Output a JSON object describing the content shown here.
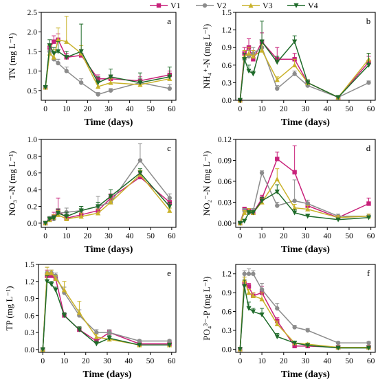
{
  "legend": [
    {
      "name": "V1",
      "color": "#c8217a",
      "marker": "square"
    },
    {
      "name": "V2",
      "color": "#8c8c8c",
      "marker": "circle"
    },
    {
      "name": "V3",
      "color": "#c9b22a",
      "marker": "triangle"
    },
    {
      "name": "V4",
      "color": "#1f6b2a",
      "marker": "triangle-down"
    }
  ],
  "chart_data": [
    {
      "type": "line",
      "panel": "a",
      "ylabel": "TN (mg L⁻¹)",
      "xlabel": "Time (days)",
      "xlim": [
        -2,
        62
      ],
      "ylim": [
        0.25,
        2.5
      ],
      "xticks": [
        0,
        10,
        20,
        30,
        40,
        50,
        60
      ],
      "yticks": [
        0.5,
        1.0,
        1.5,
        2.0,
        2.5
      ],
      "yticklabels": [
        "0.5",
        "1.0",
        "1.5",
        "2.0",
        "2.5"
      ],
      "x": [
        0,
        2,
        4,
        6,
        10,
        17,
        25,
        31,
        45,
        59
      ],
      "series": [
        {
          "name": "V1",
          "values": [
            0.58,
            1.6,
            1.75,
            1.8,
            1.35,
            1.4,
            0.8,
            0.8,
            0.75,
            0.9
          ],
          "errors": [
            0,
            0.1,
            0.15,
            0.15,
            0.1,
            0.15,
            0.1,
            0.1,
            0.1,
            0.1
          ]
        },
        {
          "name": "V2",
          "values": [
            0.58,
            1.5,
            1.3,
            1.2,
            1.0,
            0.7,
            0.4,
            0.5,
            0.7,
            0.55
          ],
          "errors": [
            0,
            0.1,
            0.15,
            0.1,
            0.1,
            0.1,
            0.05,
            0.05,
            0.1,
            0.1
          ]
        },
        {
          "name": "V3",
          "values": [
            0.58,
            1.45,
            1.35,
            1.8,
            1.75,
            1.45,
            0.6,
            0.7,
            0.65,
            0.8
          ],
          "errors": [
            0,
            0.2,
            0.2,
            0.3,
            0.65,
            0.2,
            0.1,
            0.1,
            0.1,
            0.1
          ]
        },
        {
          "name": "V4",
          "values": [
            0.58,
            1.65,
            1.45,
            1.5,
            1.35,
            1.5,
            0.7,
            0.85,
            0.7,
            0.85
          ],
          "errors": [
            0,
            0.15,
            0.15,
            0.25,
            0.15,
            0.7,
            0.15,
            0.2,
            0.25,
            0.25
          ]
        }
      ]
    },
    {
      "type": "line",
      "panel": "b",
      "ylabel": "NH₄⁺-N (mg L⁻¹)",
      "xlabel": "Time (days)",
      "xlim": [
        -2,
        62
      ],
      "ylim": [
        0,
        1.5
      ],
      "xticks": [
        0,
        10,
        20,
        30,
        40,
        50,
        60
      ],
      "yticks": [
        0.0,
        0.3,
        0.6,
        0.9,
        1.2,
        1.5
      ],
      "yticklabels": [
        "0.0",
        "0.3",
        "0.6",
        "0.9",
        "1.2",
        "1.5"
      ],
      "x": [
        0,
        2,
        4,
        6,
        10,
        17,
        25,
        31,
        45,
        59
      ],
      "series": [
        {
          "name": "V1",
          "values": [
            0.0,
            0.8,
            0.9,
            0.7,
            1.0,
            0.7,
            0.7,
            0.3,
            0.05,
            0.65
          ],
          "errors": [
            0,
            0.1,
            0.15,
            0.15,
            0.15,
            0.2,
            0.1,
            0.05,
            0.02,
            0.1
          ]
        },
        {
          "name": "V2",
          "values": [
            0.0,
            0.7,
            0.75,
            0.8,
            0.9,
            0.2,
            0.45,
            0.25,
            0.05,
            0.3
          ],
          "errors": [
            0,
            0.1,
            0.1,
            0.1,
            0.1,
            0.05,
            0.05,
            0.05,
            0.02,
            0.03
          ]
        },
        {
          "name": "V3",
          "values": [
            0.0,
            0.75,
            0.8,
            0.75,
            0.85,
            0.35,
            0.6,
            0.3,
            0.05,
            0.7
          ],
          "errors": [
            0,
            0.1,
            0.1,
            0.1,
            0.1,
            0.05,
            0.1,
            0.05,
            0.02,
            0.1
          ]
        },
        {
          "name": "V4",
          "values": [
            0.0,
            0.7,
            0.5,
            0.45,
            1.0,
            0.65,
            1.0,
            0.3,
            0.05,
            0.6
          ],
          "errors": [
            0,
            0.1,
            0.1,
            0.05,
            0.35,
            0.1,
            0.1,
            0.05,
            0.02,
            0.2
          ]
        }
      ]
    },
    {
      "type": "line",
      "panel": "c",
      "ylabel": "NO₃⁻-N (mg L⁻¹)",
      "xlabel": "Time (days)",
      "xlim": [
        -2,
        62
      ],
      "ylim": [
        -0.05,
        1.0
      ],
      "xticks": [
        0,
        10,
        20,
        30,
        40,
        50,
        60
      ],
      "yticks": [
        0.0,
        0.2,
        0.4,
        0.6,
        0.8,
        1.0
      ],
      "yticklabels": [
        "0.0",
        "0.2",
        "0.4",
        "0.6",
        "0.8",
        "1.0"
      ],
      "x": [
        0,
        2,
        4,
        6,
        10,
        17,
        25,
        31,
        45,
        59
      ],
      "series": [
        {
          "name": "V1",
          "values": [
            0.0,
            0.05,
            0.08,
            0.15,
            0.06,
            0.1,
            0.15,
            0.3,
            0.55,
            0.25
          ],
          "errors": [
            0,
            0.02,
            0.05,
            0.15,
            0.03,
            0.05,
            0.05,
            0.05,
            0.05,
            0.05
          ]
        },
        {
          "name": "V2",
          "values": [
            0.0,
            0.06,
            0.05,
            0.12,
            0.13,
            0.15,
            0.2,
            0.25,
            0.75,
            0.3
          ],
          "errors": [
            0,
            0.02,
            0.03,
            0.05,
            0.05,
            0.05,
            0.12,
            0.05,
            0.2,
            0.05
          ]
        },
        {
          "name": "V3",
          "values": [
            0.0,
            0.04,
            0.07,
            0.1,
            0.05,
            0.08,
            0.12,
            0.25,
            0.58,
            0.15
          ],
          "errors": [
            0,
            0.02,
            0.03,
            0.05,
            0.03,
            0.04,
            0.05,
            0.05,
            0.05,
            0.03
          ]
        },
        {
          "name": "V4",
          "values": [
            0.0,
            0.05,
            0.06,
            0.12,
            0.08,
            0.15,
            0.2,
            0.32,
            0.6,
            0.2
          ],
          "errors": [
            0,
            0.02,
            0.03,
            0.05,
            0.05,
            0.05,
            0.05,
            0.08,
            0.05,
            0.05
          ]
        }
      ]
    },
    {
      "type": "line",
      "panel": "d",
      "ylabel": "NO₂⁻-N (mg L⁻¹)",
      "xlabel": "Time (days)",
      "xlim": [
        -2,
        62
      ],
      "ylim": [
        -0.006,
        0.12
      ],
      "xticks": [
        0,
        10,
        20,
        30,
        40,
        50,
        60
      ],
      "yticks": [
        0.0,
        0.03,
        0.06,
        0.09,
        0.12
      ],
      "yticklabels": [
        "0.00",
        "0.03",
        "0.06",
        "0.09",
        "0.12"
      ],
      "x": [
        0,
        2,
        4,
        6,
        10,
        17,
        25,
        31,
        45,
        59
      ],
      "series": [
        {
          "name": "V1",
          "values": [
            0.0,
            0.02,
            0.018,
            0.015,
            0.035,
            0.092,
            0.073,
            0.025,
            0.008,
            0.028
          ],
          "errors": [
            0,
            0.003,
            0.003,
            0.003,
            0.005,
            0.01,
            0.038,
            0.005,
            0.003,
            0.008
          ]
        },
        {
          "name": "V2",
          "values": [
            0.0,
            0.018,
            0.015,
            0.018,
            0.072,
            0.025,
            0.032,
            0.028,
            0.01,
            0.01
          ],
          "errors": [
            0,
            0.003,
            0.003,
            0.003,
            0.003,
            0.005,
            0.03,
            0.005,
            0.003,
            0.003
          ]
        },
        {
          "name": "V3",
          "values": [
            0.0,
            0.015,
            0.018,
            0.015,
            0.03,
            0.063,
            0.022,
            0.02,
            0.008,
            0.01
          ],
          "errors": [
            0,
            0.003,
            0.003,
            0.003,
            0.005,
            0.015,
            0.005,
            0.005,
            0.003,
            0.003
          ]
        },
        {
          "name": "V4",
          "values": [
            0.0,
            0.003,
            0.015,
            0.015,
            0.032,
            0.045,
            0.015,
            0.01,
            0.005,
            0.008
          ],
          "errors": [
            0,
            0.002,
            0.003,
            0.003,
            0.005,
            0.01,
            0.005,
            0.003,
            0.002,
            0.002
          ]
        }
      ]
    },
    {
      "type": "line",
      "panel": "e",
      "ylabel": "TP (mg L⁻¹)",
      "xlabel": "Time (days)",
      "xlim": [
        -2,
        62
      ],
      "ylim": [
        -0.05,
        1.5
      ],
      "xticks": [
        0,
        10,
        20,
        30,
        40,
        50,
        60
      ],
      "yticks": [
        0.0,
        0.3,
        0.6,
        0.9,
        1.2,
        1.5
      ],
      "yticklabels": [
        "0.0",
        "0.3",
        "0.6",
        "0.9",
        "1.2",
        "1.5"
      ],
      "x": [
        0,
        2,
        4,
        6,
        10,
        17,
        25,
        31,
        45,
        59
      ],
      "series": [
        {
          "name": "V1",
          "values": [
            0.0,
            1.3,
            1.3,
            1.25,
            0.6,
            0.35,
            0.15,
            0.3,
            0.1,
            0.1
          ],
          "errors": [
            0,
            0.1,
            0.05,
            0.05,
            0.05,
            0.05,
            0.05,
            0.05,
            0.02,
            0.02
          ]
        },
        {
          "name": "V2",
          "values": [
            0.0,
            1.35,
            1.35,
            1.3,
            1.0,
            0.6,
            0.3,
            0.3,
            0.15,
            0.15
          ],
          "errors": [
            0,
            0.1,
            0.05,
            0.05,
            0.1,
            0.1,
            0.05,
            0.05,
            0.02,
            0.02
          ]
        },
        {
          "name": "V3",
          "values": [
            0.0,
            1.35,
            1.35,
            1.25,
            1.05,
            0.65,
            0.22,
            0.18,
            0.08,
            0.08
          ],
          "errors": [
            0,
            0.1,
            0.05,
            0.05,
            0.15,
            0.2,
            0.05,
            0.05,
            0.02,
            0.02
          ]
        },
        {
          "name": "V4",
          "values": [
            0.0,
            1.2,
            1.15,
            1.05,
            0.6,
            0.35,
            0.1,
            0.2,
            0.08,
            0.08
          ],
          "errors": [
            0,
            0.1,
            0.05,
            0.05,
            0.05,
            0.05,
            0.05,
            0.05,
            0.02,
            0.02
          ]
        }
      ]
    },
    {
      "type": "line",
      "panel": "f",
      "ylabel": "PO₄³⁻-P (mg L⁻¹)",
      "xlabel": "Time (days)",
      "xlim": [
        -2,
        62
      ],
      "ylim": [
        -0.05,
        1.35
      ],
      "xticks": [
        0,
        10,
        20,
        30,
        40,
        50,
        60
      ],
      "yticks": [
        0.0,
        0.3,
        0.6,
        0.9,
        1.2
      ],
      "yticklabels": [
        "0.0",
        "0.3",
        "0.6",
        "0.9",
        "1.2"
      ],
      "x": [
        0,
        2,
        4,
        6,
        10,
        17,
        25,
        31,
        45,
        59
      ],
      "series": [
        {
          "name": "V1",
          "values": [
            0.0,
            1.05,
            1.0,
            0.85,
            0.9,
            0.45,
            0.05,
            0.05,
            0.03,
            0.03
          ],
          "errors": [
            0,
            0.05,
            0.05,
            0.05,
            0.1,
            0.05,
            0.02,
            0.02,
            0.01,
            0.01
          ]
        },
        {
          "name": "V2",
          "values": [
            0.0,
            1.2,
            1.2,
            1.2,
            0.95,
            0.65,
            0.35,
            0.3,
            0.1,
            0.1
          ],
          "errors": [
            0,
            0.05,
            0.08,
            0.05,
            0.1,
            0.08,
            0.03,
            0.03,
            0.02,
            0.02
          ]
        },
        {
          "name": "V3",
          "values": [
            0.0,
            1.1,
            0.9,
            0.85,
            0.8,
            0.4,
            0.1,
            0.08,
            0.03,
            0.03
          ],
          "errors": [
            0,
            0.05,
            0.05,
            0.05,
            0.1,
            0.05,
            0.02,
            0.02,
            0.01,
            0.01
          ]
        },
        {
          "name": "V4",
          "values": [
            0.0,
            1.0,
            0.65,
            0.6,
            0.55,
            0.2,
            0.1,
            0.06,
            0.02,
            0.02
          ],
          "errors": [
            0,
            0.1,
            0.1,
            0.05,
            0.1,
            0.05,
            0.02,
            0.02,
            0.01,
            0.01
          ]
        }
      ]
    }
  ]
}
